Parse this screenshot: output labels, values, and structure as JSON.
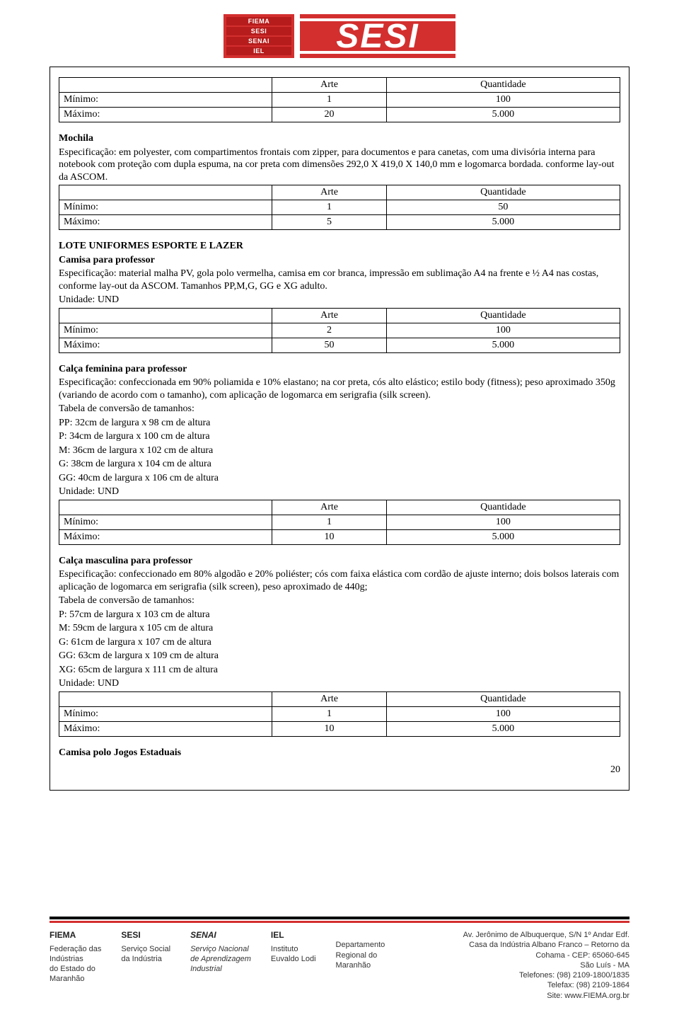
{
  "logos": {
    "stack": [
      "FIEMA",
      "SESI",
      "SENAI",
      "IEL"
    ],
    "main": "SESI"
  },
  "tables": {
    "t1": {
      "h1": "Arte",
      "h2": "Quantidade",
      "r1l": "Mínimo:",
      "r1a": "1",
      "r1b": "100",
      "r2l": "Máximo:",
      "r2a": "20",
      "r2b": "5.000"
    },
    "t2": {
      "h1": "Arte",
      "h2": "Quantidade",
      "r1l": "Mínimo:",
      "r1a": "1",
      "r1b": "50",
      "r2l": "Máximo:",
      "r2a": "5",
      "r2b": "5.000"
    },
    "t3": {
      "h1": "Arte",
      "h2": "Quantidade",
      "r1l": "Mínimo:",
      "r1a": "2",
      "r1b": "100",
      "r2l": "Máximo:",
      "r2a": "50",
      "r2b": "5.000"
    },
    "t4": {
      "h1": "Arte",
      "h2": "Quantidade",
      "r1l": "Mínimo:",
      "r1a": "1",
      "r1b": "100",
      "r2l": "Máximo:",
      "r2a": "10",
      "r2b": "5.000"
    },
    "t5": {
      "h1": "Arte",
      "h2": "Quantidade",
      "r1l": "Mínimo:",
      "r1a": "1",
      "r1b": "100",
      "r2l": "Máximo:",
      "r2a": "10",
      "r2b": "5.000"
    }
  },
  "s_mochila": {
    "title": "Mochila",
    "spec": "Especificação: em polyester, com compartimentos frontais com zipper, para documentos e para canetas, com uma divisória interna para notebook com proteção com dupla espuma, na cor preta com dimensões 292,0 X 419,0 X 140,0 mm e logomarca bordada. conforme lay-out da ASCOM."
  },
  "s_lote": {
    "title": "LOTE UNIFORMES ESPORTE E LAZER",
    "sub": "Camisa para professor",
    "spec": "Especificação: material malha PV, gola polo vermelha, camisa em cor branca, impressão em sublimação A4 na frente e ½ A4 nas costas, conforme lay-out da ASCOM. Tamanhos PP,M,G, GG e XG adulto.",
    "unit": "Unidade: UND"
  },
  "s_calcaf": {
    "title": "Calça feminina para professor",
    "spec": "Especificação: confeccionada em 90% poliamida e 10% elastano; na cor preta,  cós alto  elástico; estilo body (fitness); peso aproximado 350g (variando de acordo com o tamanho), com aplicação de logomarca em serigrafia (silk screen).",
    "tab": "Tabela de conversão de tamanhos:",
    "l1": "PP: 32cm de largura x 98 cm de altura",
    "l2": "P: 34cm de largura x 100 cm de altura",
    "l3": "M: 36cm de largura x 102 cm de altura",
    "l4": "G: 38cm de largura x 104 cm de altura",
    "l5": "GG: 40cm de largura x 106 cm de altura",
    "unit": "Unidade: UND"
  },
  "s_calcam": {
    "title": "Calça masculina para professor",
    "spec": "Especificação: confeccionado em 80% algodão e 20% poliéster; cós com faixa elástica com cordão de ajuste interno; dois bolsos laterais com aplicação de logomarca em serigrafia (silk screen), peso aproximado de 440g;",
    "tab": "Tabela de conversão de tamanhos:",
    "l1": "P: 57cm de largura x 103 cm de altura",
    "l2": "M: 59cm de largura x 105 cm de altura",
    "l3": "G: 61cm de largura x 107 cm de altura",
    "l4": "GG: 63cm de largura x 109 cm de altura",
    "l5": "XG: 65cm de largura x 111 cm de altura",
    "unit": "Unidade: UND"
  },
  "s_camisa": {
    "title": "Camisa polo Jogos Estaduais"
  },
  "page_num": "20",
  "footer": {
    "fiema": {
      "t": "FIEMA",
      "l1": "Federação das",
      "l2": "Indústrias",
      "l3": "do Estado do",
      "l4": "Maranhão"
    },
    "sesi": {
      "t": "SESI",
      "l1": "Serviço Social",
      "l2": "da Indústria"
    },
    "senai": {
      "t": "SENAI",
      "l1": "Serviço Nacional",
      "l2": "de Aprendizagem",
      "l3": "Industrial"
    },
    "iel": {
      "t": "IEL",
      "l1": "Instituto",
      "l2": "Euvaldo Lodi"
    },
    "dep": {
      "l1": "Departamento",
      "l2": "Regional do",
      "l3": "Maranhão"
    },
    "addr": {
      "l1": "Av. Jerônimo de Albuquerque, S/N 1º Andar Edf.",
      "l2": "Casa da Indústria Albano Franco – Retorno da",
      "l3": "Cohama - CEP: 65060-645",
      "l4": "São Luís - MA",
      "l5": "Telefones: (98) 2109-1800/1835",
      "l6": "Telefax: (98) 2109-1864",
      "l7": "Site: www.FIEMA.org.br"
    }
  }
}
